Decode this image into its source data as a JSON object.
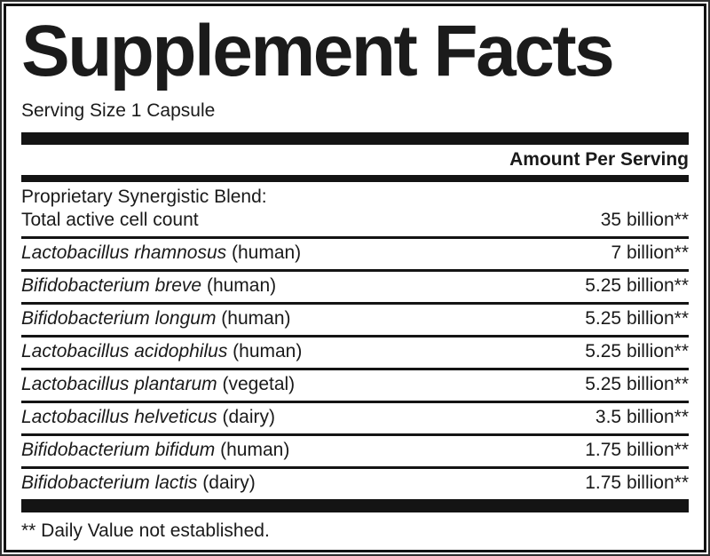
{
  "label": {
    "title": "Supplement Facts",
    "serving_size": "Serving Size 1 Capsule",
    "amount_header": "Amount Per Serving",
    "blend": {
      "heading": "Proprietary Synergistic Blend:",
      "item": "Total active cell count",
      "amount": "35 billion**"
    },
    "rows": [
      {
        "species": "Lactobacillus rhamnosus",
        "qualifier": "(human)",
        "amount": "7 billion**"
      },
      {
        "species": "Bifidobacterium breve",
        "qualifier": "(human)",
        "amount": "5.25 billion**"
      },
      {
        "species": "Bifidobacterium longum",
        "qualifier": "(human)",
        "amount": "5.25 billion**"
      },
      {
        "species": "Lactobacillus acidophilus",
        "qualifier": "(human)",
        "amount": "5.25 billion**"
      },
      {
        "species": "Lactobacillus plantarum",
        "qualifier": "(vegetal)",
        "amount": "5.25 billion**"
      },
      {
        "species": "Lactobacillus helveticus",
        "qualifier": "(dairy)",
        "amount": "3.5 billion**"
      },
      {
        "species": "Bifidobacterium bifidum",
        "qualifier": "(human)",
        "amount": "1.75 billion**"
      },
      {
        "species": "Bifidobacterium lactis",
        "qualifier": "(dairy)",
        "amount": "1.75 billion**"
      }
    ],
    "footnote": "** Daily Value not established.",
    "colors": {
      "ink": "#1a1a1a",
      "rule": "#141414",
      "background": "#ffffff"
    }
  }
}
